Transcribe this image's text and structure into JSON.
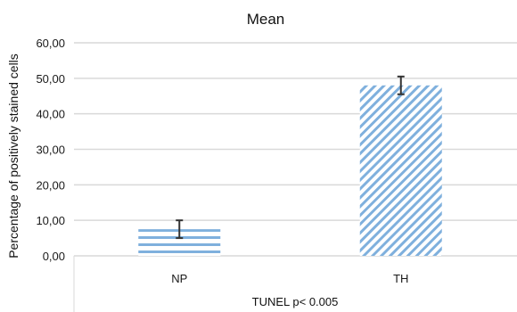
{
  "chart_data": {
    "type": "bar",
    "title": "Mean",
    "ylabel": "Percentage of positively stained cells",
    "xlabel": "TUNEL p< 0.005",
    "categories": [
      "NP",
      "TH"
    ],
    "values": [
      7.5,
      48.0
    ],
    "error": [
      2.5,
      2.5
    ],
    "ylim": [
      0,
      60
    ],
    "yticks": [
      "0,00",
      "10,00",
      "20,00",
      "30,00",
      "40,00",
      "50,00",
      "60,00"
    ],
    "ytick_values": [
      0,
      10,
      20,
      30,
      40,
      50,
      60
    ],
    "grid": true,
    "patterns": [
      "horizontal-stripes",
      "diagonal-hatch"
    ],
    "colors": {
      "bar": "#7fb0dd",
      "grid": "#d9d9d9",
      "error_bar": "#333333"
    }
  }
}
